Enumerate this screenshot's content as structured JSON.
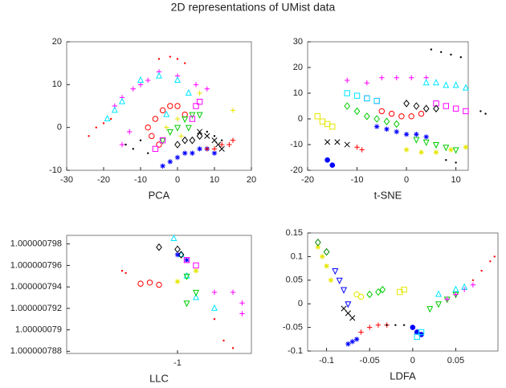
{
  "title": "2D representations of UMist data",
  "chart_data": [
    {
      "type": "scatter",
      "xlabel": "PCA",
      "xlim": [
        -30,
        20
      ],
      "ylim": [
        -10,
        20
      ],
      "xticks": [
        -30,
        -20,
        -10,
        0,
        10,
        20
      ],
      "yticks": [
        -10,
        0,
        10,
        20
      ],
      "series": [
        {
          "color": "#ff0000",
          "marker": ".",
          "x": [
            -24,
            -22,
            -20,
            -18,
            -5,
            -2,
            0,
            2
          ],
          "values": [
            -2,
            0,
            1,
            2,
            16,
            16.5,
            16,
            15
          ]
        },
        {
          "color": "#ff00ff",
          "marker": "+",
          "x": [
            -17,
            -15,
            -12,
            -10,
            -8,
            -5,
            0,
            5,
            8,
            -13,
            -15
          ],
          "values": [
            5,
            7,
            9,
            10,
            11,
            13,
            12,
            10,
            9,
            -1,
            -4
          ]
        },
        {
          "color": "#00e5ff",
          "marker": "^",
          "x": [
            -19,
            -17,
            -15,
            -10,
            -5,
            0,
            3,
            -3
          ],
          "values": [
            2,
            4,
            6,
            11,
            12,
            11,
            8,
            3
          ]
        },
        {
          "color": "#ff0000",
          "marker": "o",
          "x": [
            -8,
            -6,
            -4,
            -2,
            0,
            2,
            -7,
            -5
          ],
          "values": [
            0,
            2,
            4,
            5,
            5,
            3,
            -2,
            -4
          ]
        },
        {
          "color": "#000000",
          "marker": ".",
          "x": [
            -14,
            -12,
            -10,
            8,
            10,
            12,
            -8
          ],
          "values": [
            -4,
            -5,
            -3,
            -1,
            -2,
            -3,
            -6
          ]
        },
        {
          "color": "#000000",
          "marker": "x",
          "x": [
            8,
            10,
            11,
            12,
            6
          ],
          "values": [
            -2,
            -3,
            -4,
            -5,
            -1
          ]
        },
        {
          "color": "#0000ff",
          "marker": "*",
          "x": [
            -4,
            -2,
            0,
            2,
            4,
            6,
            8,
            10
          ],
          "values": [
            -9,
            -8,
            -7,
            -6,
            -6,
            -5,
            -5,
            -6
          ]
        },
        {
          "color": "#ff0000",
          "marker": "+",
          "x": [
            8,
            10,
            12,
            14,
            15
          ],
          "values": [
            -5,
            -5,
            -4,
            -4,
            -3
          ]
        },
        {
          "color": "#00cc00",
          "marker": "v",
          "x": [
            -4,
            -2,
            0,
            2,
            4,
            6,
            3
          ],
          "values": [
            -3,
            -1,
            0,
            2,
            3,
            3,
            0
          ]
        },
        {
          "color": "#e6e600",
          "marker": "+",
          "x": [
            -3,
            0,
            1,
            6,
            15
          ],
          "values": [
            0,
            2,
            -2,
            8,
            4
          ]
        },
        {
          "color": "#ff00ff",
          "marker": "s",
          "x": [
            6,
            5,
            4,
            -4,
            -6
          ],
          "values": [
            6,
            5,
            2,
            -3,
            -5
          ]
        },
        {
          "color": "#000000",
          "marker": "d",
          "x": [
            0,
            2,
            4,
            6
          ],
          "values": [
            -4,
            -3,
            -3,
            -2
          ]
        }
      ]
    },
    {
      "type": "scatter",
      "xlabel": "t-SNE",
      "xlim": [
        -20,
        12.5
      ],
      "ylim": [
        -20,
        30
      ],
      "xticks": [
        -20,
        -10,
        0,
        10
      ],
      "yticks": [
        -20,
        -10,
        0,
        10,
        20,
        30
      ],
      "series": [
        {
          "color": "#000000",
          "marker": ".",
          "x": [
            5,
            7,
            9,
            11,
            15,
            16,
            8,
            10
          ],
          "values": [
            27,
            26,
            25,
            24,
            3,
            2,
            -16,
            -17
          ]
        },
        {
          "color": "#ff00ff",
          "marker": "+",
          "x": [
            -5,
            -2,
            1,
            4,
            -12,
            -8
          ],
          "values": [
            16,
            16,
            16,
            16,
            15,
            14
          ]
        },
        {
          "color": "#00e5ff",
          "marker": "^",
          "x": [
            4,
            6,
            8,
            10,
            12
          ],
          "values": [
            14,
            14,
            13,
            13,
            12
          ]
        },
        {
          "color": "#ff00ff",
          "marker": "s",
          "x": [
            6,
            8,
            10,
            12,
            -8,
            -6
          ],
          "values": [
            6,
            5,
            4,
            3,
            8,
            7
          ]
        },
        {
          "color": "#000000",
          "marker": "d",
          "x": [
            0,
            2,
            4,
            6
          ],
          "values": [
            6,
            5,
            4,
            4
          ]
        },
        {
          "color": "#00cc00",
          "marker": "d",
          "x": [
            -12,
            -10,
            -8,
            -6,
            -4,
            -2
          ],
          "values": [
            5,
            3,
            1,
            0,
            -1,
            -2
          ]
        },
        {
          "color": "#ff0000",
          "marker": "o",
          "x": [
            -5,
            -3,
            -1,
            1,
            3
          ],
          "values": [
            3,
            2,
            1,
            1,
            2
          ]
        },
        {
          "color": "#e6e600",
          "marker": "s",
          "x": [
            -18,
            -17,
            -16,
            -15
          ],
          "values": [
            1,
            -1,
            -2,
            -3
          ]
        },
        {
          "color": "#0000ff",
          "marker": "*",
          "x": [
            -6,
            -4,
            -2,
            0,
            2,
            4
          ],
          "values": [
            -3,
            -4,
            -5,
            -6,
            -6,
            -7
          ]
        },
        {
          "color": "#00e5ff",
          "marker": "s",
          "x": [
            -12,
            -10,
            -8,
            -6
          ],
          "values": [
            10,
            9,
            8,
            7
          ]
        },
        {
          "color": "#00cc00",
          "marker": "v",
          "x": [
            2,
            4,
            6,
            8,
            10
          ],
          "values": [
            -8,
            -9,
            -10,
            -11,
            -12
          ]
        },
        {
          "color": "#e6e600",
          "marker": "*",
          "x": [
            0,
            3,
            6,
            9,
            12
          ],
          "values": [
            -12,
            -13,
            -13,
            -12,
            -11
          ]
        },
        {
          "color": "#000000",
          "marker": "x",
          "x": [
            -16,
            -14,
            -12
          ],
          "values": [
            -9,
            -9,
            -10
          ]
        },
        {
          "color": "#ff0000",
          "marker": "+",
          "x": [
            -10,
            -9
          ],
          "values": [
            -11,
            -12
          ]
        },
        {
          "color": "#0000ff",
          "marker": "p",
          "x": [
            -16,
            -15
          ],
          "values": [
            -16,
            -18
          ]
        }
      ]
    },
    {
      "type": "scatter",
      "xlabel": "LLC",
      "xlim": [
        -1.0000006,
        -0.9999996
      ],
      "ylim": [
        1.0000007878,
        1.0000007988
      ],
      "xticks": [
        -1
      ],
      "yticks": [
        1.000000788,
        1.00000079,
        1.000000792,
        1.000000794,
        1.000000796,
        1.000000798
      ],
      "series": [
        {
          "color": "#ff0000",
          "marker": ".",
          "x": [
            -1.0000003,
            -1.00000028,
            -0.9999998,
            -0.99999975,
            -0.9999997
          ],
          "values": [
            1.0000007955,
            1.0000007953,
            1.000000791,
            1.000000789,
            1.0000007883
          ]
        },
        {
          "color": "#ff0000",
          "marker": "o",
          "x": [
            -1.0000002,
            -1.00000015,
            -1.0000001
          ],
          "values": [
            1.0000007943,
            1.0000007944,
            1.0000007942
          ]
        },
        {
          "color": "#ff00ff",
          "marker": "+",
          "x": [
            -0.9999997,
            -0.99999965,
            -0.99999965,
            -0.9999998
          ],
          "values": [
            1.0000007935,
            1.0000007925,
            1.0000007915,
            1.0000007935
          ]
        },
        {
          "color": "#00e5ff",
          "marker": "^",
          "x": [
            -1.00000002,
            -0.99999998,
            -0.99999995,
            -0.9999999,
            -0.9999998
          ],
          "values": [
            1.0000007985,
            1.000000797,
            1.000000795,
            1.000000793,
            1.000000792
          ]
        },
        {
          "color": "#000000",
          "marker": "d",
          "x": [
            -1.0000001,
            -1,
            -0.99999998
          ],
          "values": [
            1.0000007977,
            1.0000007975,
            1.000000797
          ]
        },
        {
          "color": "#0000ff",
          "marker": "*",
          "x": [
            -1,
            -0.99999995
          ],
          "values": [
            1.000000797,
            1.0000007965
          ]
        },
        {
          "color": "#00cc00",
          "marker": "v",
          "x": [
            -0.99999995,
            -0.9999999,
            -0.99999995
          ],
          "values": [
            1.000000795,
            1.0000007935,
            1.0000007925
          ]
        },
        {
          "color": "#e6e600",
          "marker": "*",
          "x": [
            -1,
            -0.9999999
          ],
          "values": [
            1.0000007945,
            1.0000007955
          ]
        },
        {
          "color": "#ff00ff",
          "marker": "s",
          "x": [
            -0.99999995,
            -0.9999999
          ],
          "values": [
            1.0000007965,
            1.000000796
          ]
        }
      ]
    },
    {
      "type": "scatter",
      "xlabel": "LDFA",
      "xlim": [
        -0.122,
        0.099
      ],
      "ylim": [
        -0.1,
        0.15
      ],
      "xticks": [
        -0.1,
        -0.05,
        0,
        0.05
      ],
      "yticks": [
        -0.1,
        -0.05,
        0,
        0.05,
        0.1,
        0.15
      ],
      "series": [
        {
          "color": "#e6e600",
          "marker": "*",
          "x": [
            -0.11,
            -0.105,
            -0.1,
            -0.095
          ],
          "values": [
            0.12,
            0.1,
            0.08,
            0.05
          ]
        },
        {
          "color": "#008800",
          "marker": "d",
          "x": [
            -0.11,
            -0.1
          ],
          "values": [
            0.13,
            0.11
          ]
        },
        {
          "color": "#0000ff",
          "marker": "v",
          "x": [
            -0.09,
            -0.085,
            -0.08,
            -0.075
          ],
          "values": [
            0.07,
            0.05,
            0.03,
            0.0
          ]
        },
        {
          "color": "#e6e600",
          "marker": "o",
          "x": [
            -0.065,
            -0.06
          ],
          "values": [
            0.02,
            0.015
          ]
        },
        {
          "color": "#00cc00",
          "marker": "d",
          "x": [
            -0.05,
            -0.04,
            -0.035
          ],
          "values": [
            0.02,
            0.025,
            0.03
          ]
        },
        {
          "color": "#000000",
          "marker": "x",
          "x": [
            -0.08,
            -0.075,
            -0.07
          ],
          "values": [
            -0.01,
            -0.02,
            -0.03
          ]
        },
        {
          "color": "#0000ff",
          "marker": "*",
          "x": [
            -0.075,
            -0.07,
            -0.065
          ],
          "values": [
            -0.085,
            -0.08,
            -0.075
          ]
        },
        {
          "color": "#ff0000",
          "marker": "+",
          "x": [
            -0.06,
            -0.05,
            -0.04,
            -0.03
          ],
          "values": [
            -0.06,
            -0.05,
            -0.045,
            -0.045
          ]
        },
        {
          "color": "#000000",
          "marker": ".",
          "x": [
            -0.03,
            -0.02,
            -0.01
          ],
          "values": [
            -0.045,
            -0.045,
            -0.045
          ]
        },
        {
          "color": "#e6e600",
          "marker": "s",
          "x": [
            -0.015,
            -0.01
          ],
          "values": [
            0.025,
            0.03
          ]
        },
        {
          "color": "#0000ff",
          "marker": "p",
          "x": [
            0,
            0.005,
            0.01
          ],
          "values": [
            -0.05,
            -0.06,
            -0.065
          ]
        },
        {
          "color": "#00e5ff",
          "marker": "s",
          "x": [
            0.005,
            0.01
          ],
          "values": [
            -0.07,
            -0.06
          ]
        },
        {
          "color": "#00cc00",
          "marker": "v",
          "x": [
            0.02,
            0.03,
            0.04,
            0.05
          ],
          "values": [
            -0.01,
            0.0,
            0.01,
            0.02
          ]
        },
        {
          "color": "#ff00ff",
          "marker": "+",
          "x": [
            0.04,
            0.05,
            0.06,
            0.07
          ],
          "values": [
            0.01,
            0.02,
            0.03,
            0.04
          ]
        },
        {
          "color": "#00e5ff",
          "marker": "^",
          "x": [
            0.03,
            0.05,
            0.06
          ],
          "values": [
            0.02,
            0.03,
            0.035
          ]
        },
        {
          "color": "#ff0000",
          "marker": ".",
          "x": [
            0.07,
            0.08,
            0.09,
            0.095
          ],
          "values": [
            0.05,
            0.07,
            0.09,
            0.1
          ]
        }
      ]
    }
  ]
}
